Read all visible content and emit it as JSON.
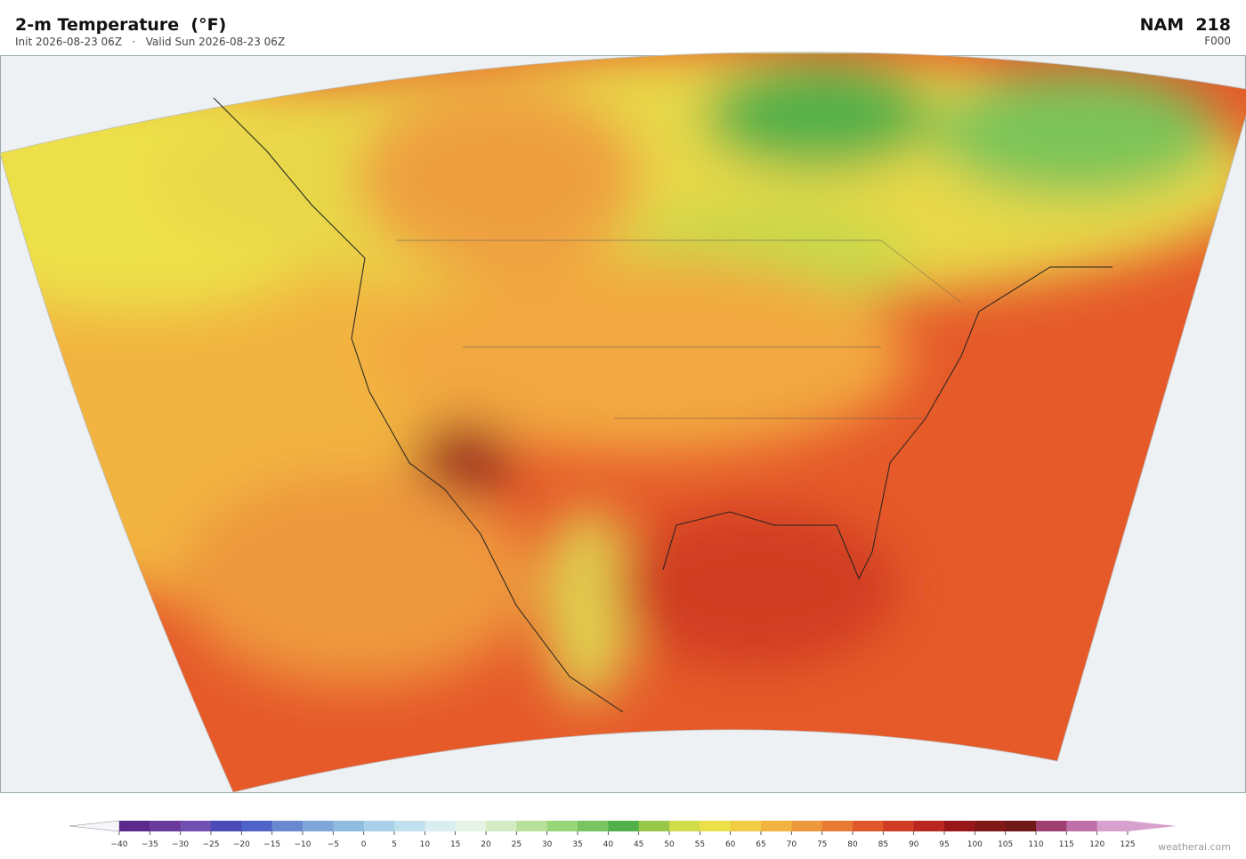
{
  "header": {
    "title": "2-m Temperature  (°F)",
    "subtitle": "Init 2026-08-23 06Z   ·   Valid Sun 2026-08-23 06Z",
    "model": "NAM  218",
    "forecast_hour": "F000"
  },
  "colorbar": {
    "ticks": [
      {
        "value": -40,
        "label": "−40"
      },
      {
        "value": -35,
        "label": "−35"
      },
      {
        "value": -30,
        "label": "−30"
      },
      {
        "value": -25,
        "label": "−25"
      },
      {
        "value": -20,
        "label": "−20"
      },
      {
        "value": -15,
        "label": "−15"
      },
      {
        "value": -10,
        "label": "−10"
      },
      {
        "value": -5,
        "label": "−5"
      },
      0,
      5,
      10,
      15,
      20,
      25,
      30,
      35,
      40,
      45,
      50,
      55,
      60,
      65,
      70,
      75,
      80,
      85,
      90,
      95,
      100,
      105,
      110,
      115,
      120,
      125
    ],
    "colors": [
      "#5b2a8c",
      "#6a3a9c",
      "#7050b0",
      "#4a4ab8",
      "#5064c8",
      "#6a8ad0",
      "#7fa6d8",
      "#90bce0",
      "#a8d0e8",
      "#c0e0ee",
      "#d8eef0",
      "#e6f4e6",
      "#d4ecc4",
      "#b8e09a",
      "#98d478",
      "#78c460",
      "#52b04a",
      "#98c848",
      "#d0dc48",
      "#ece04a",
      "#f2cc44",
      "#f2b440",
      "#ee983c",
      "#e87a34",
      "#e0582a",
      "#d03c24",
      "#b82820",
      "#98181a",
      "#801818",
      "#6e1818",
      "#a04070",
      "#c070a8",
      "#d8a0cc"
    ],
    "extend_colors": [
      "#f6f6fa",
      "#d8a0cc"
    ]
  },
  "footer": {
    "watermark": "weatherai.com"
  }
}
